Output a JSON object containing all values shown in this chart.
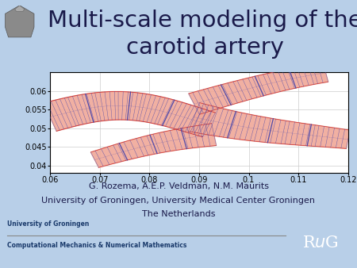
{
  "title": "Multi-scale modeling of the\ncarotid artery",
  "title_fontsize": 21,
  "bg_color": "#b8cfe8",
  "plot_bg_color": "#ffffff",
  "author_line": "G. Rozema, A.E.P. Veldman, N.M. Maurits",
  "affil_line1": "University of Groningen, University Medical Center Groningen",
  "affil_line2": "The Netherlands",
  "footer_left1": "University of Groningen",
  "footer_left2": "Computational Mechanics & Numerical Mathematics",
  "footer_bg": "#1a3a6b",
  "xlim": [
    0.06,
    0.12
  ],
  "ylim": [
    0.038,
    0.065
  ],
  "xticks": [
    0.06,
    0.07,
    0.08,
    0.09,
    0.1,
    0.11,
    0.12
  ],
  "yticks": [
    0.04,
    0.045,
    0.05,
    0.055,
    0.06
  ],
  "grid_color": "#cccccc",
  "fill_color": "#f0a898",
  "edge_color": "#cc3030",
  "mesh_color": "#4040aa",
  "text_color": "#1a1a4a"
}
